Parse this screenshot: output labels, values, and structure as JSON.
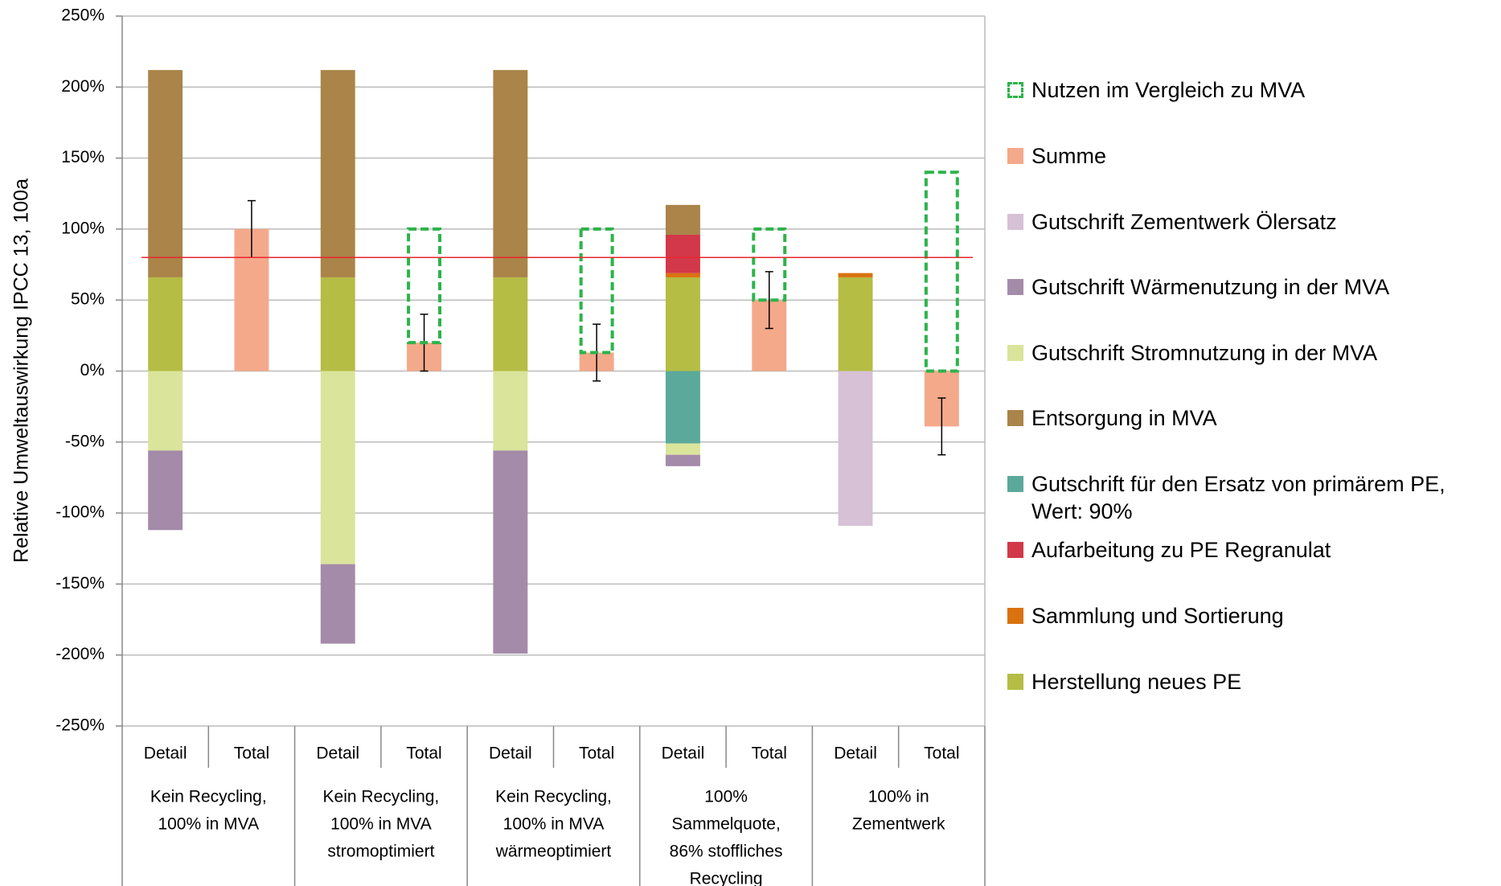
{
  "chart_data": {
    "type": "stacked_bar",
    "y_label": "Relative Umweltauswirkung IPCC 13, 100a",
    "categories": [
      "Detail",
      "Total",
      "Detail",
      "Total",
      "Detail",
      "Total",
      "Detail",
      "Total",
      "Detail",
      "Total"
    ],
    "groups": [
      {
        "label": [
          "Kein Recycling,",
          "100% in MVA"
        ]
      },
      {
        "label": [
          "Kein Recycling,",
          "100% in MVA",
          "stromoptimiert"
        ]
      },
      {
        "label": [
          "Kein Recycling,",
          "100% in MVA",
          "wärmeoptimiert"
        ]
      },
      {
        "label": [
          "100%",
          "Sammelquote,",
          "86% stoffliches",
          "Recycling"
        ]
      },
      {
        "label": [
          "100% in",
          "Zementwerk"
        ]
      }
    ],
    "ylim": [
      -250,
      250
    ],
    "yticks": [
      {
        "value": 250,
        "label": "250%"
      },
      {
        "value": 200,
        "label": "200%"
      },
      {
        "value": 150,
        "label": "150%"
      },
      {
        "value": 100,
        "label": "100%"
      },
      {
        "value": 50,
        "label": "50%"
      },
      {
        "value": 0,
        "label": "0%"
      },
      {
        "value": -50,
        "label": "-50%"
      },
      {
        "value": -100,
        "label": "-100%"
      },
      {
        "value": -150,
        "label": "-150%"
      },
      {
        "value": -200,
        "label": "-200%"
      },
      {
        "value": -250,
        "label": "-250%"
      }
    ],
    "grid": true,
    "reference_line": {
      "value": 80,
      "color": "#e8262f"
    },
    "series": [
      {
        "name": "Nutzen im Vergleich zu MVA",
        "color": "#2db34a",
        "style": "dashed",
        "values": [
          null,
          null,
          null,
          80,
          null,
          87,
          null,
          50,
          null,
          140
        ]
      },
      {
        "name": "Summe",
        "color": "#f4a98a",
        "values": [
          null,
          100,
          null,
          20,
          null,
          13,
          null,
          50,
          null,
          -39
        ],
        "errors": [
          null,
          20,
          null,
          20,
          null,
          20,
          null,
          20,
          null,
          20
        ]
      },
      {
        "name": "Gutschrift Zementwerk Ölersatz",
        "color": "#d6c1d6",
        "values": [
          null,
          null,
          null,
          null,
          null,
          null,
          null,
          null,
          -109,
          null
        ]
      },
      {
        "name": "Gutschrift Wärmenutzung in der MVA",
        "color": "#a48ba9",
        "values": [
          -56,
          null,
          -56,
          null,
          -143,
          null,
          -8,
          null,
          null,
          null
        ]
      },
      {
        "name": "Gutschrift Stromnutzung in der MVA",
        "color": "#dae49a",
        "values": [
          -56,
          null,
          -136,
          null,
          -56,
          null,
          -8,
          null,
          null,
          null
        ]
      },
      {
        "name": "Entsorgung in MVA",
        "color": "#aa8448",
        "values": [
          146,
          null,
          146,
          null,
          146,
          null,
          21,
          null,
          null,
          null
        ]
      },
      {
        "name": "Gutschrift für den Ersatz von primärem PE, Wert: 90%",
        "color": "#5ba99b",
        "values": [
          null,
          null,
          null,
          null,
          null,
          null,
          -51,
          null,
          null,
          null
        ]
      },
      {
        "name": "Aufarbeitung zu PE Regranulat",
        "color": "#d2384a",
        "values": [
          null,
          null,
          null,
          null,
          null,
          null,
          27,
          null,
          null,
          null
        ]
      },
      {
        "name": "Sammlung und Sortierung",
        "color": "#d9720f",
        "values": [
          null,
          null,
          null,
          null,
          null,
          null,
          3,
          null,
          3,
          null
        ]
      },
      {
        "name": "Herstellung neues PE",
        "color": "#b5bd45",
        "values": [
          66,
          null,
          66,
          null,
          66,
          null,
          66,
          null,
          66,
          null
        ]
      }
    ]
  }
}
